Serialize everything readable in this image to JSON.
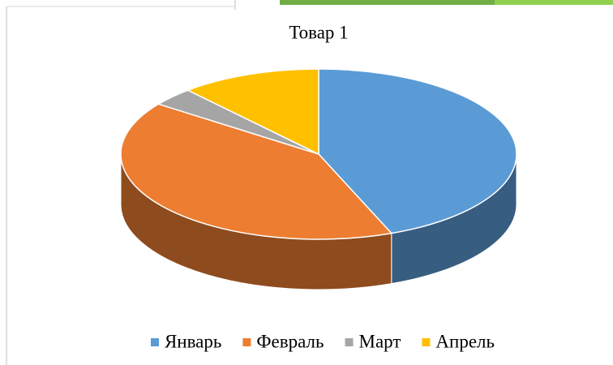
{
  "chart_data": {
    "type": "pie",
    "title": "Товар 1",
    "categories": [
      "Январь",
      "Февраль",
      "Март",
      "Апрель"
    ],
    "values": [
      44,
      41,
      3.5,
      11.5
    ],
    "colors": [
      "#5b9bd5",
      "#ed7d31",
      "#a5a5a5",
      "#ffc000"
    ]
  }
}
